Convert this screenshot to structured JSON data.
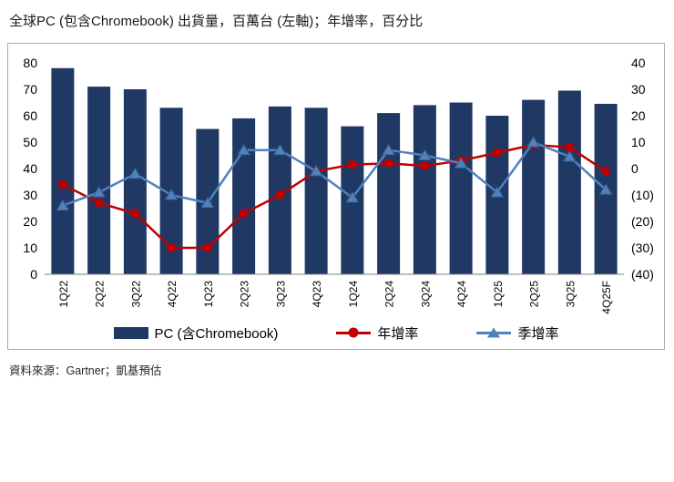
{
  "title": "全球PC (包含Chromebook) 出貨量，百萬台 (左軸)；年增率，百分比",
  "footer": "資料來源：Gartner；凱基預估",
  "colors": {
    "bar": "#1F3864",
    "yoy": "#C00000",
    "qoq": "#4F81BD",
    "qoq_edge": "#376092",
    "axis_line": "#808080"
  },
  "chart_data": {
    "type": "combo",
    "title": "全球PC (包含Chromebook) 出貨量，百萬台 (左軸)；年增率，百分比",
    "categories": [
      "1Q22",
      "2Q22",
      "3Q22",
      "4Q22",
      "1Q23",
      "2Q23",
      "3Q23",
      "4Q23",
      "1Q24",
      "2Q24",
      "3Q24",
      "4Q24",
      "1Q25",
      "2Q25",
      "3Q25",
      "4Q25F"
    ],
    "series": [
      {
        "name": "PC (含Chromebook)",
        "type": "bar",
        "axis": "left",
        "values": [
          78,
          71,
          70,
          63,
          55,
          59,
          63.5,
          63,
          56,
          61,
          64,
          65,
          60,
          66,
          69.5,
          64.5
        ]
      },
      {
        "name": "年增率",
        "type": "line",
        "axis": "right",
        "marker": "circle",
        "values": [
          -6,
          -13,
          -17,
          -30,
          -30,
          -17,
          -10,
          -1,
          1.5,
          2,
          1,
          3,
          6,
          9,
          8,
          -1
        ]
      },
      {
        "name": "季增率",
        "type": "line",
        "axis": "right",
        "marker": "triangle",
        "values": [
          -14,
          -9,
          -2,
          -10,
          -13,
          7,
          7,
          -1,
          -11,
          7,
          5,
          2,
          -9,
          10,
          4.5,
          -8
        ]
      }
    ],
    "left_axis": {
      "min": 0,
      "max": 80,
      "ticks": [
        0,
        10,
        20,
        30,
        40,
        50,
        60,
        70,
        80
      ]
    },
    "right_axis": {
      "min": -40,
      "max": 40,
      "ticks": [
        40,
        30,
        20,
        10,
        0,
        -10,
        -20,
        -30,
        -40
      ],
      "negative_format": "parentheses"
    },
    "grid": false,
    "legend_position": "bottom"
  }
}
